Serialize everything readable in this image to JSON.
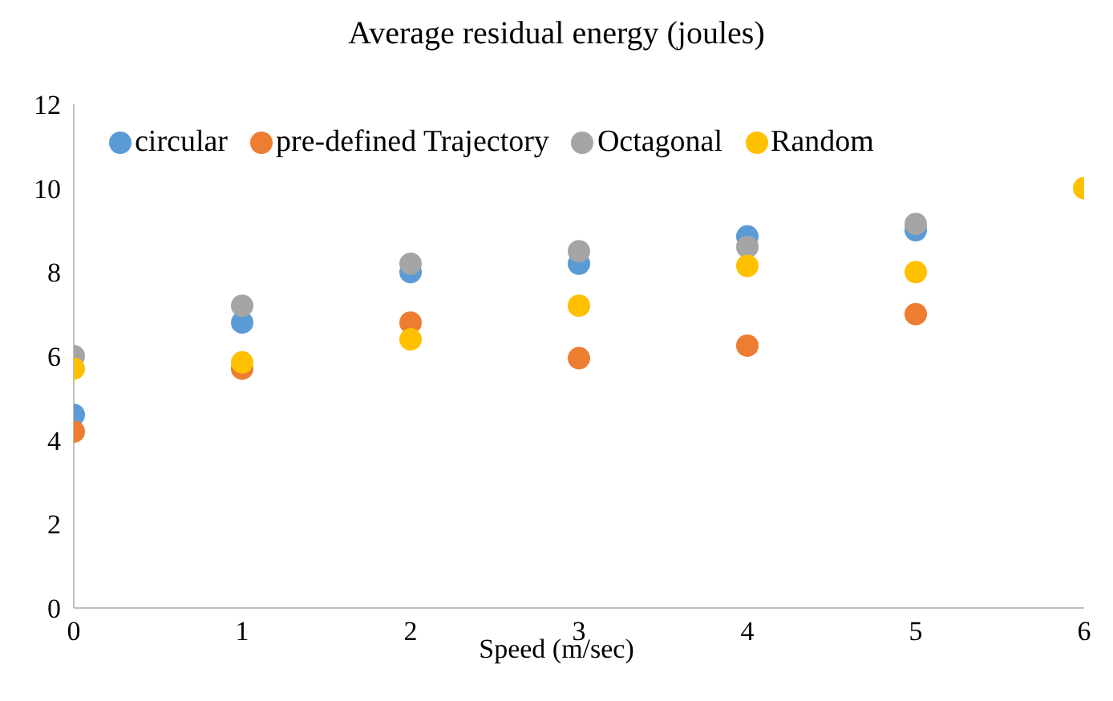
{
  "chart_data": {
    "type": "scatter",
    "title": "Average residual energy (joules)",
    "xlabel": "Speed (m/sec)",
    "x": [
      0,
      1,
      2,
      3,
      4,
      5,
      6
    ],
    "series": [
      {
        "name": "circular",
        "color": "#5b9bd5",
        "values": [
          4.6,
          6.8,
          8.0,
          8.2,
          8.85,
          9.0,
          null
        ]
      },
      {
        "name": "pre-defined Trajectory",
        "color": "#ed7d31",
        "values": [
          4.2,
          5.7,
          6.8,
          5.95,
          6.25,
          7.0,
          null
        ]
      },
      {
        "name": "Octagonal",
        "color": "#a5a5a5",
        "values": [
          6.0,
          7.2,
          8.2,
          8.5,
          8.6,
          9.15,
          null
        ]
      },
      {
        "name": "Random",
        "color": "#ffc000",
        "values": [
          5.7,
          5.85,
          6.4,
          7.2,
          8.15,
          8.0,
          10.0
        ]
      }
    ],
    "xlim": [
      0,
      6
    ],
    "xticks": [
      0,
      1,
      2,
      3,
      4,
      5,
      6
    ],
    "ylim": [
      0,
      12
    ],
    "yticks": [
      0,
      2,
      4,
      6,
      8,
      10,
      12
    ],
    "grid": false,
    "legend": "top left",
    "marker": "circle"
  }
}
